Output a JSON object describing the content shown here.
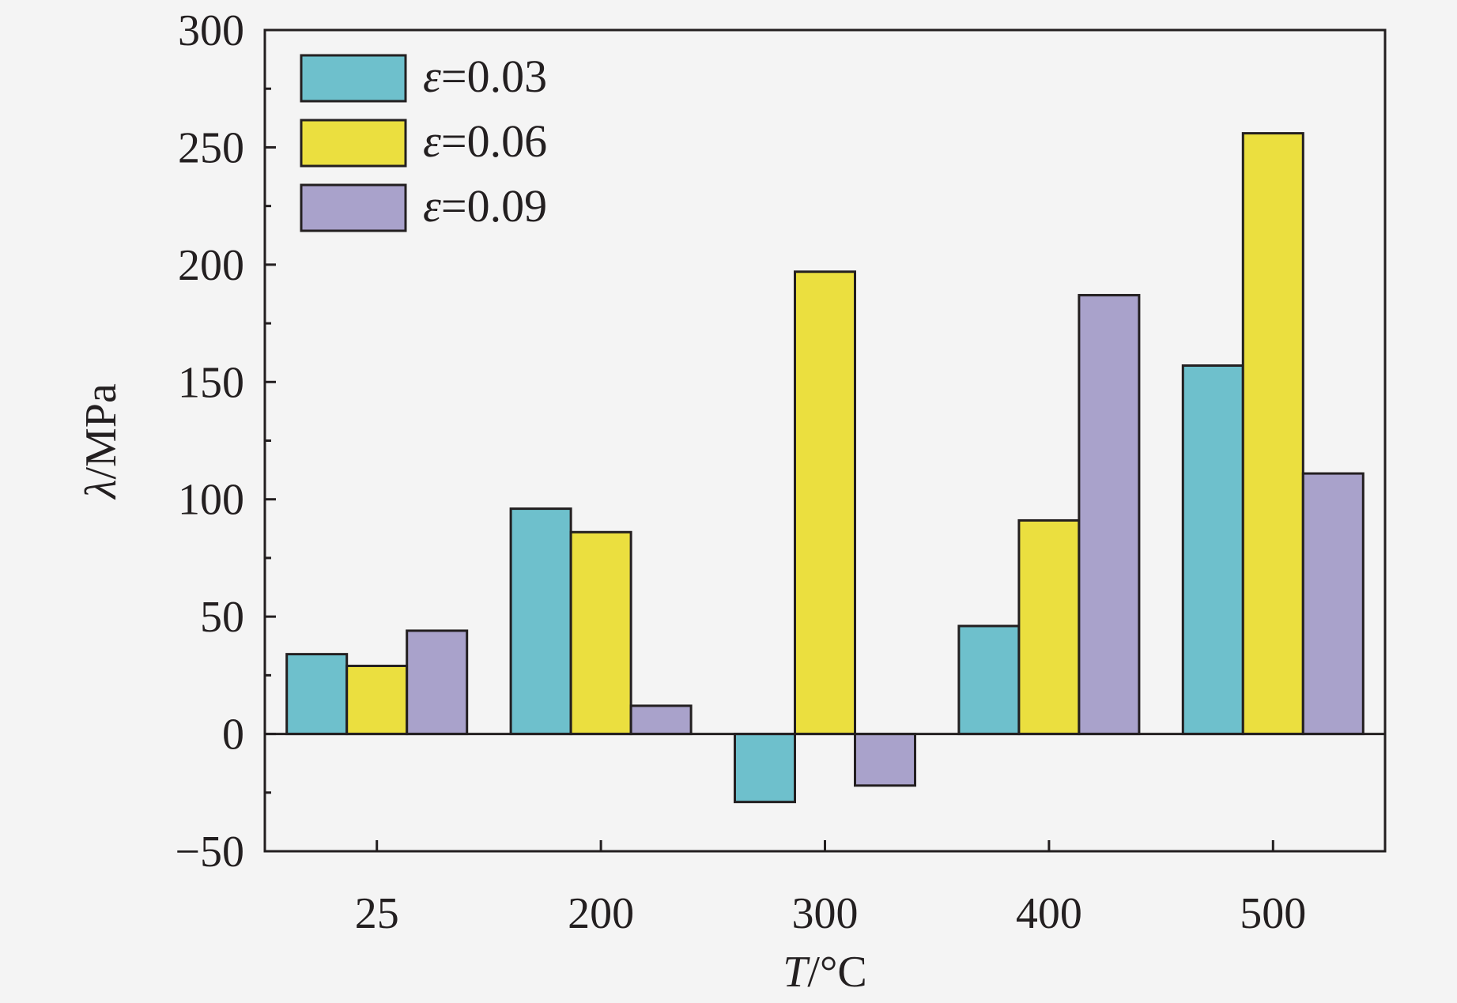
{
  "chart_data": {
    "type": "bar",
    "title": "",
    "xlabel": {
      "var": "T",
      "unit": "/°C"
    },
    "ylabel": {
      "var": "λ",
      "unit": "/MPa"
    },
    "categories": [
      "25",
      "200",
      "300",
      "400",
      "500"
    ],
    "ylim": [
      -50,
      300
    ],
    "yticks": [
      -50,
      0,
      50,
      100,
      150,
      200,
      250,
      300
    ],
    "ytick_labels": [
      "−50",
      "0",
      "50",
      "100",
      "150",
      "200",
      "250",
      "300"
    ],
    "legend_position": "top-left",
    "series": [
      {
        "name": "ε=0.03",
        "symbol": "ε",
        "value_text": "=0.03",
        "color": "#6ec0cc",
        "values": [
          34,
          96,
          -29,
          46,
          157
        ]
      },
      {
        "name": "ε=0.06",
        "symbol": "ε",
        "value_text": "=0.06",
        "color": "#ebdf3f",
        "values": [
          29,
          86,
          197,
          91,
          256
        ]
      },
      {
        "name": "ε=0.09",
        "symbol": "ε",
        "value_text": "=0.09",
        "color": "#a9a2cb",
        "values": [
          44,
          12,
          -22,
          187,
          111
        ]
      }
    ]
  }
}
